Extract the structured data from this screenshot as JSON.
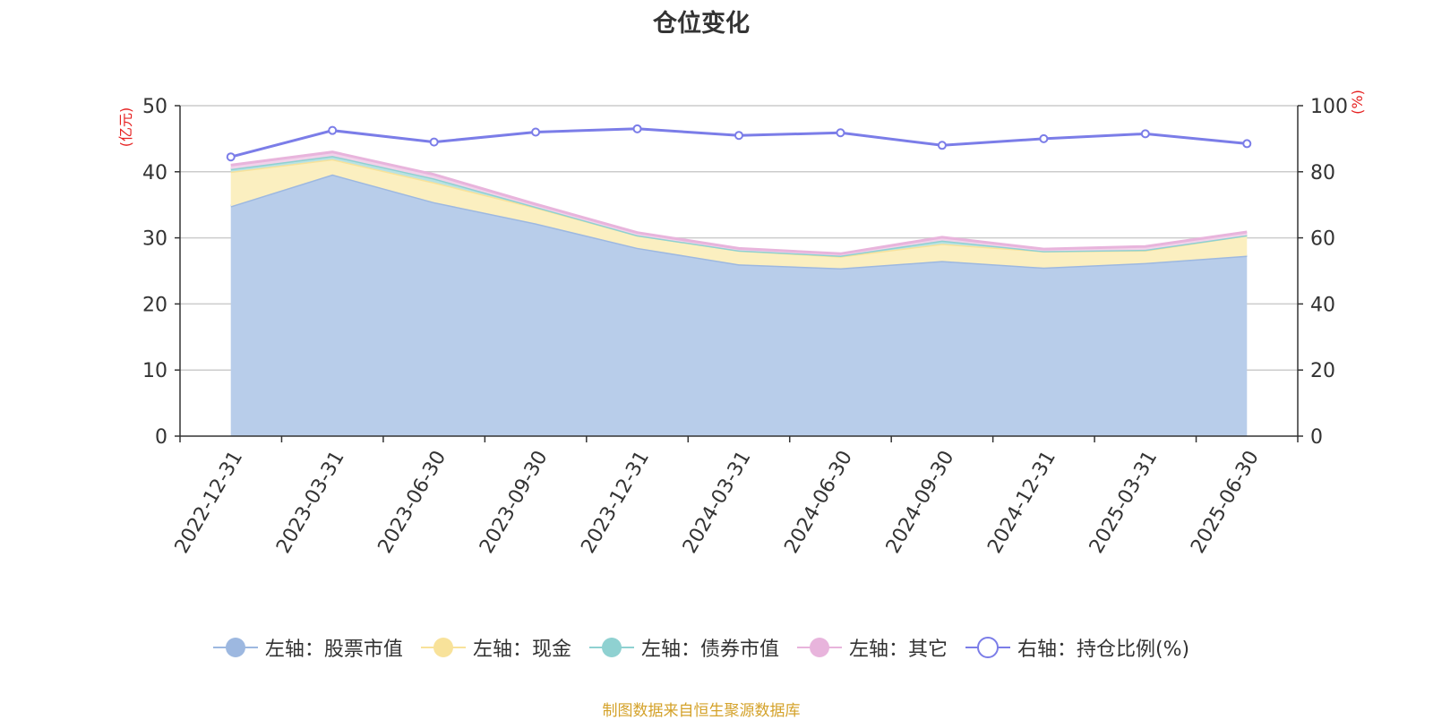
{
  "chart_data": {
    "type": "area",
    "title": "仓位变化",
    "categories": [
      "2022-12-31",
      "2023-03-31",
      "2023-06-30",
      "2023-09-30",
      "2023-12-31",
      "2024-03-31",
      "2024-06-30",
      "2024-09-30",
      "2024-12-31",
      "2025-03-31",
      "2025-06-30"
    ],
    "left_axis": {
      "unit": "(亿元)",
      "range": [
        0,
        50
      ],
      "ticks": [
        0,
        10,
        20,
        30,
        40,
        50
      ]
    },
    "right_axis": {
      "unit": "(%)",
      "range": [
        0,
        100
      ],
      "ticks": [
        0,
        20,
        40,
        60,
        80,
        100
      ]
    },
    "stacked": true,
    "grid": true,
    "legend_position": "bottom",
    "series": [
      {
        "name": "左轴：股票市值",
        "axis": "left",
        "color": "#9db8e0",
        "fill": "#b8cdea",
        "values": [
          34.8,
          39.6,
          35.4,
          32.2,
          28.5,
          26.0,
          25.4,
          26.5,
          25.5,
          26.2,
          27.3
        ]
      },
      {
        "name": "左轴：现金",
        "axis": "left",
        "color": "#f8e29a",
        "fill": "#fbefc0",
        "values": [
          5.2,
          2.3,
          3.0,
          2.4,
          1.9,
          2.1,
          1.8,
          2.6,
          2.5,
          1.9,
          3.1
        ]
      },
      {
        "name": "左轴：债券市值",
        "axis": "left",
        "color": "#8fd1d1",
        "fill": "#b8e2e2",
        "values": [
          0.4,
          0.5,
          0.6,
          0.1,
          0.0,
          0.0,
          0.1,
          0.5,
          0.0,
          0.1,
          0.0
        ]
      },
      {
        "name": "左轴：其它",
        "axis": "left",
        "color": "#e8b4dc",
        "fill": "#f1d2ea",
        "values": [
          0.6,
          0.6,
          0.6,
          0.4,
          0.4,
          0.3,
          0.3,
          0.5,
          0.3,
          0.5,
          0.5
        ]
      },
      {
        "name": "右轴：持仓比例(%)",
        "axis": "right",
        "color": "#7b7de8",
        "fill": "none",
        "values": [
          84.5,
          92.5,
          89.0,
          92.0,
          93.0,
          91.0,
          91.8,
          88.0,
          90.0,
          91.5,
          88.5
        ]
      }
    ],
    "source_note": "制图数据来自恒生聚源数据库"
  }
}
